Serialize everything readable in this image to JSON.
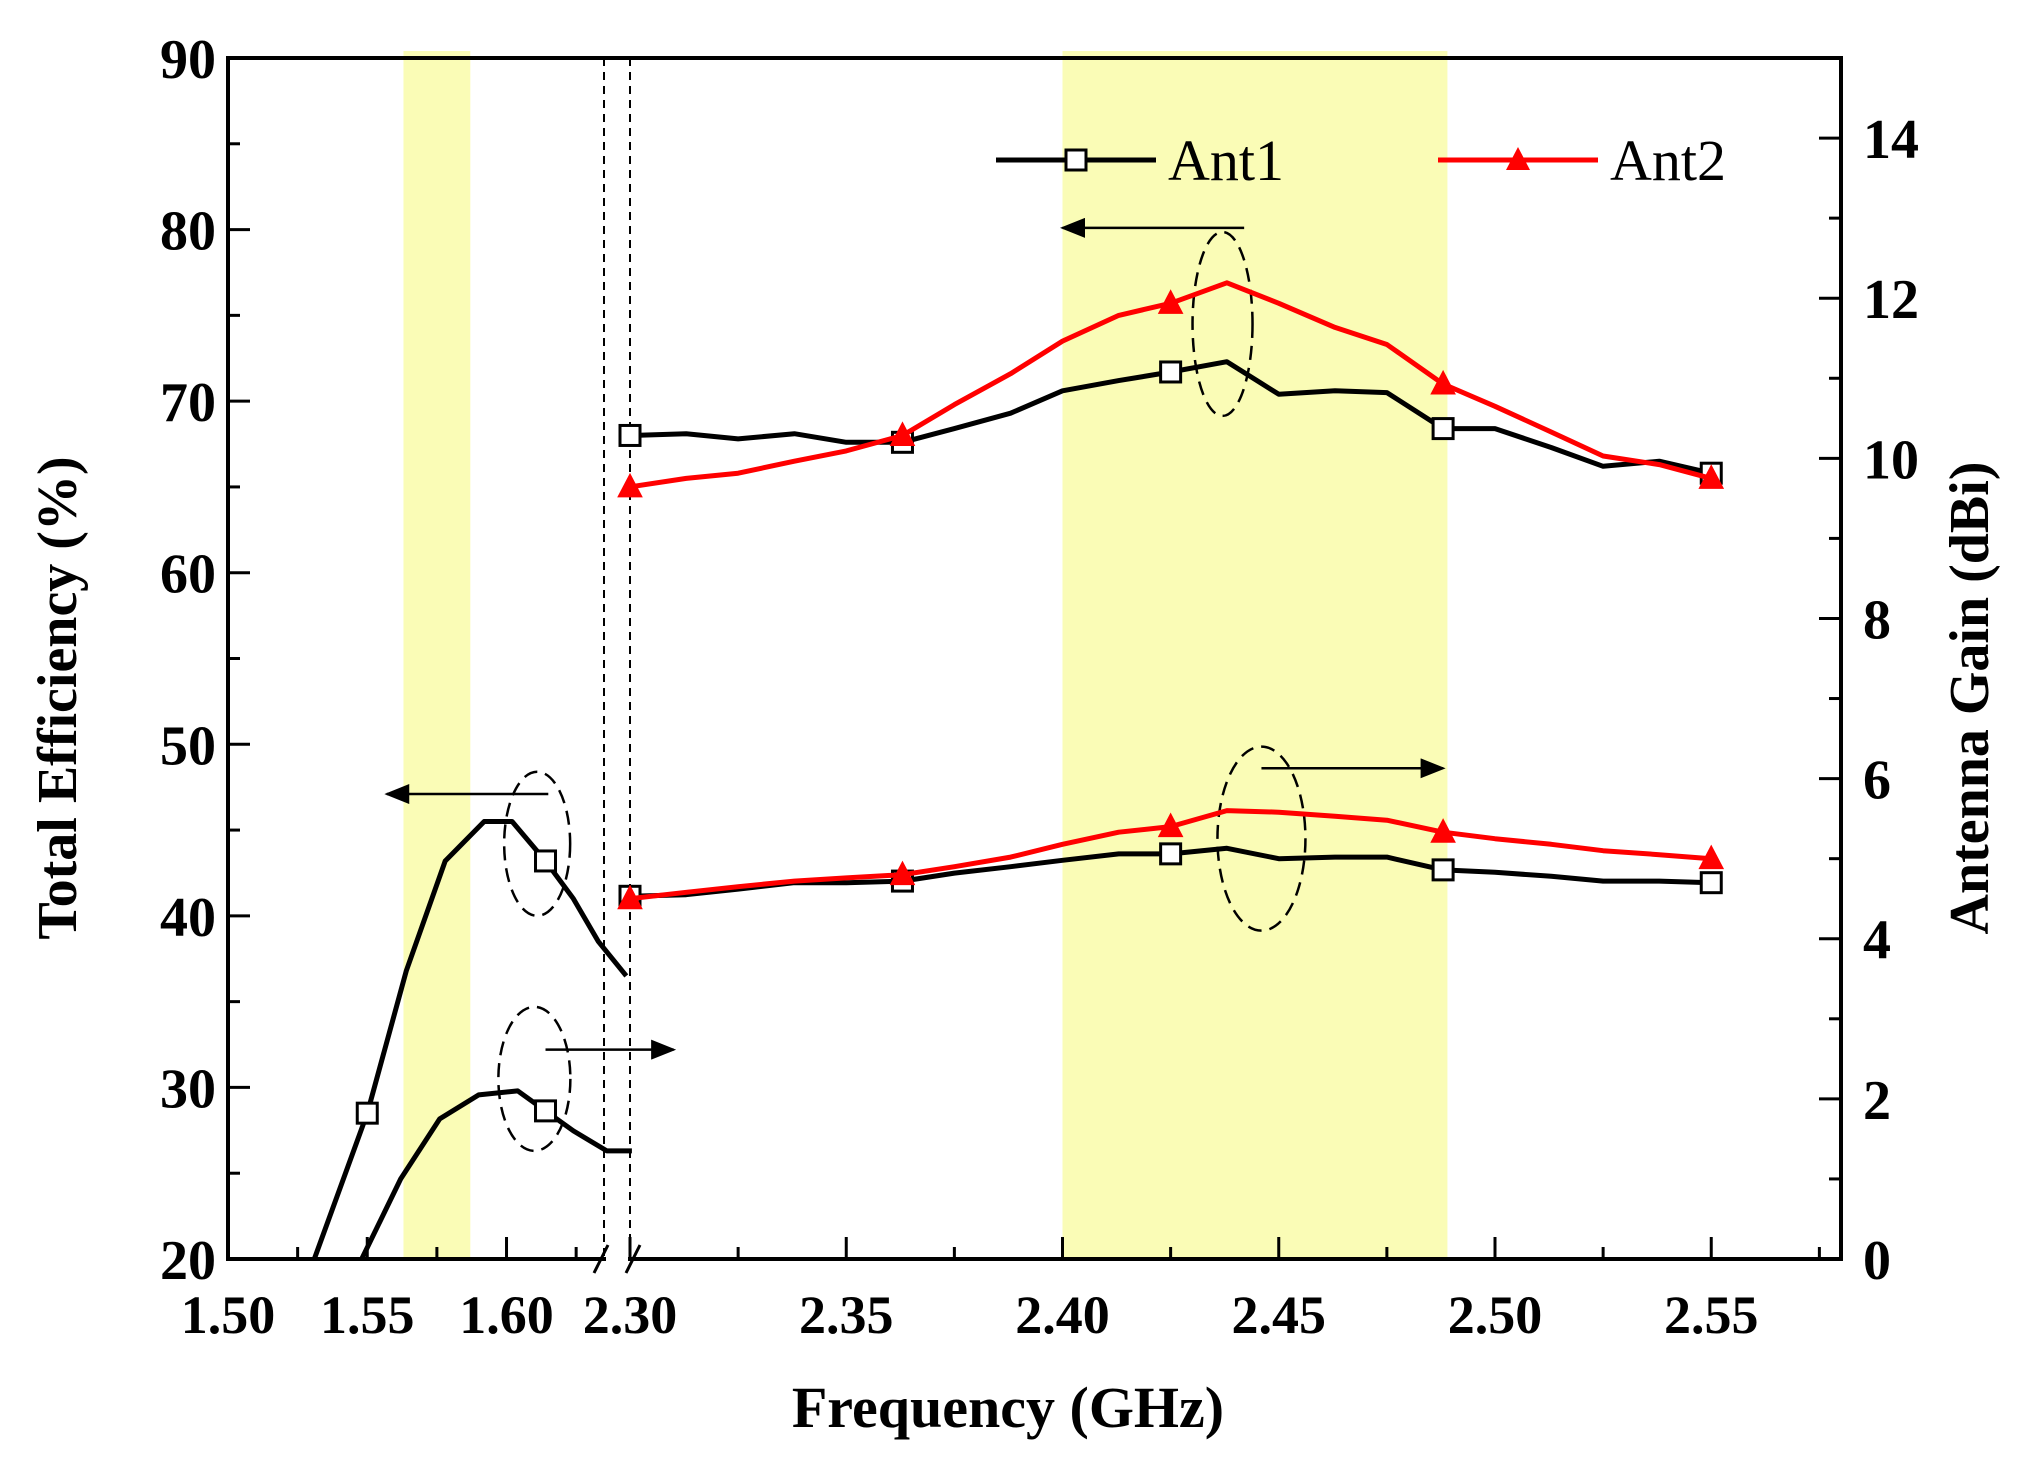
{
  "chart_data": {
    "type": "line",
    "xlabel": "Frequency (GHz)",
    "ylabel_left": "Total Efficiency (%)",
    "ylabel_right": "Antenna Gain (dBi)",
    "y_left_lim": [
      20,
      90
    ],
    "y_right_lim": [
      0,
      15
    ],
    "x_ranges": [
      [
        1.5,
        1.635
      ],
      [
        2.3,
        2.58
      ]
    ],
    "x_ticks_low": [
      "1.50",
      "1.55",
      "1.60"
    ],
    "x_ticks_high": [
      "2.30",
      "2.35",
      "2.40",
      "2.45",
      "2.50",
      "2.55"
    ],
    "y_left_ticks": [
      "20",
      "30",
      "40",
      "50",
      "60",
      "70",
      "80",
      "90"
    ],
    "y_right_ticks": [
      "0",
      "2",
      "4",
      "6",
      "8",
      "10",
      "12",
      "14"
    ],
    "shaded_bands": [
      [
        1.563,
        1.587
      ],
      [
        2.4,
        2.489
      ]
    ],
    "legend": [
      {
        "name": "Ant1",
        "color": "#000000",
        "marker": "open-square"
      },
      {
        "name": "Ant2",
        "color": "#ff0000",
        "marker": "filled-triangle"
      }
    ],
    "series": [
      {
        "name": "Ant1 efficiency (1.5 GHz band)",
        "axis": "left",
        "color": "#000000",
        "marker": "open-square",
        "x": [
          1.531,
          1.55,
          1.564,
          1.578,
          1.592,
          1.602,
          1.614,
          1.624,
          1.633,
          1.643
        ],
        "values": [
          20.0,
          28.5,
          36.8,
          43.2,
          45.5,
          45.5,
          43.2,
          41.0,
          38.5,
          36.5
        ],
        "markers_at": [
          1.55,
          1.614
        ]
      },
      {
        "name": "Ant1 gain (1.5 GHz band)",
        "axis": "right",
        "color": "#000000",
        "marker": "open-square",
        "x": [
          1.548,
          1.562,
          1.576,
          1.59,
          1.604,
          1.614,
          1.624,
          1.636,
          1.645
        ],
        "values": [
          0.0,
          1.0,
          1.75,
          2.05,
          2.1,
          1.85,
          1.6,
          1.35,
          1.35
        ],
        "markers_at": [
          1.614
        ]
      },
      {
        "name": "Ant1 efficiency",
        "axis": "left",
        "color": "#000000",
        "marker": "open-square",
        "x": [
          2.3,
          2.313,
          2.325,
          2.338,
          2.35,
          2.363,
          2.375,
          2.388,
          2.4,
          2.413,
          2.425,
          2.438,
          2.45,
          2.463,
          2.475,
          2.488,
          2.5,
          2.513,
          2.525,
          2.538,
          2.55
        ],
        "values": [
          68.0,
          68.1,
          67.8,
          68.1,
          67.6,
          67.6,
          68.4,
          69.3,
          70.6,
          71.2,
          71.7,
          72.3,
          70.4,
          70.6,
          70.5,
          68.4,
          68.4,
          67.3,
          66.2,
          66.5,
          65.8
        ],
        "markers_at": [
          2.3,
          2.363,
          2.425,
          2.488,
          2.55
        ]
      },
      {
        "name": "Ant2 efficiency",
        "axis": "left",
        "color": "#ff0000",
        "marker": "filled-triangle",
        "x": [
          2.3,
          2.313,
          2.325,
          2.338,
          2.35,
          2.363,
          2.375,
          2.388,
          2.4,
          2.413,
          2.425,
          2.438,
          2.45,
          2.463,
          2.475,
          2.488,
          2.5,
          2.513,
          2.525,
          2.538,
          2.55
        ],
        "values": [
          65.0,
          65.5,
          65.8,
          66.5,
          67.1,
          68.0,
          69.8,
          71.6,
          73.5,
          75.0,
          75.7,
          76.9,
          75.7,
          74.3,
          73.3,
          71.0,
          69.7,
          68.2,
          66.8,
          66.3,
          65.5
        ],
        "markers_at": [
          2.3,
          2.363,
          2.425,
          2.488,
          2.55
        ]
      },
      {
        "name": "Ant1 gain",
        "axis": "right",
        "color": "#000000",
        "marker": "open-square",
        "x": [
          2.3,
          2.313,
          2.325,
          2.338,
          2.35,
          2.363,
          2.375,
          2.388,
          2.4,
          2.413,
          2.425,
          2.438,
          2.45,
          2.463,
          2.475,
          2.488,
          2.5,
          2.513,
          2.525,
          2.538,
          2.55
        ],
        "values": [
          4.53,
          4.55,
          4.62,
          4.7,
          4.7,
          4.72,
          4.82,
          4.9,
          4.98,
          5.06,
          5.06,
          5.13,
          5.0,
          5.02,
          5.02,
          4.86,
          4.83,
          4.78,
          4.72,
          4.72,
          4.7
        ],
        "markers_at": [
          2.3,
          2.363,
          2.425,
          2.488,
          2.55
        ]
      },
      {
        "name": "Ant2 gain",
        "axis": "right",
        "color": "#ff0000",
        "marker": "filled-triangle",
        "x": [
          2.3,
          2.313,
          2.325,
          2.338,
          2.35,
          2.363,
          2.375,
          2.388,
          2.4,
          2.413,
          2.425,
          2.438,
          2.45,
          2.463,
          2.475,
          2.488,
          2.5,
          2.513,
          2.525,
          2.538,
          2.55
        ],
        "values": [
          4.5,
          4.58,
          4.65,
          4.72,
          4.76,
          4.8,
          4.9,
          5.02,
          5.18,
          5.33,
          5.4,
          5.6,
          5.58,
          5.53,
          5.48,
          5.33,
          5.25,
          5.18,
          5.1,
          5.05,
          5.0
        ],
        "markers_at": [
          2.3,
          2.363,
          2.425,
          2.488,
          2.55
        ]
      }
    ]
  }
}
